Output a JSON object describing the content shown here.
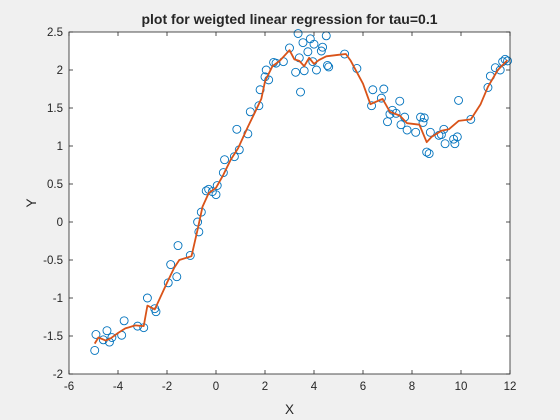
{
  "chart_data": {
    "type": "scatter",
    "title": "plot for weigted linear regression for tau=0.1",
    "xlabel": "X",
    "ylabel": "Y",
    "xlim": [
      -6,
      12
    ],
    "ylim": [
      -2,
      2.5
    ],
    "xticks": [
      "-6",
      "-4",
      "-2",
      "0",
      "2",
      "4",
      "6",
      "8",
      "10",
      "12"
    ],
    "yticks": [
      "-2",
      "-1.5",
      "-1",
      "-0.5",
      "0",
      "0.5",
      "1",
      "1.5",
      "2",
      "2.5"
    ],
    "grid": false,
    "legend": "none",
    "colors": {
      "points": "#0072bd",
      "line": "#d95319",
      "axes": "#262626",
      "background": "#ffffff",
      "figure": "#f0f0f0"
    },
    "series": [
      {
        "kind": "scatter",
        "points": [
          [
            -4.95,
            -1.69
          ],
          [
            -4.9,
            -1.48
          ],
          [
            -4.6,
            -1.55
          ],
          [
            -4.45,
            -1.43
          ],
          [
            -4.35,
            -1.58
          ],
          [
            -4.25,
            -1.52
          ],
          [
            -3.85,
            -1.49
          ],
          [
            -3.75,
            -1.3
          ],
          [
            -3.2,
            -1.37
          ],
          [
            -2.95,
            -1.39
          ],
          [
            -2.8,
            -1.0
          ],
          [
            -2.5,
            -1.14
          ],
          [
            -2.45,
            -1.18
          ],
          [
            -1.95,
            -0.8
          ],
          [
            -1.85,
            -0.56
          ],
          [
            -1.6,
            -0.72
          ],
          [
            -1.55,
            -0.31
          ],
          [
            -1.05,
            -0.44
          ],
          [
            -0.75,
            0.0
          ],
          [
            -0.7,
            -0.13
          ],
          [
            -0.6,
            0.13
          ],
          [
            -0.4,
            0.41
          ],
          [
            -0.3,
            0.43
          ],
          [
            -0.15,
            0.4
          ],
          [
            0.0,
            0.36
          ],
          [
            0.05,
            0.48
          ],
          [
            0.3,
            0.65
          ],
          [
            0.35,
            0.82
          ],
          [
            0.75,
            0.86
          ],
          [
            0.85,
            1.22
          ],
          [
            0.95,
            0.95
          ],
          [
            1.3,
            1.16
          ],
          [
            1.4,
            1.45
          ],
          [
            1.75,
            1.53
          ],
          [
            1.8,
            1.74
          ],
          [
            2.0,
            1.91
          ],
          [
            2.05,
            2.0
          ],
          [
            2.15,
            1.87
          ],
          [
            2.35,
            2.1
          ],
          [
            2.45,
            2.09
          ],
          [
            2.75,
            2.11
          ],
          [
            3.0,
            2.29
          ],
          [
            3.25,
            1.97
          ],
          [
            3.35,
            2.48
          ],
          [
            3.4,
            2.16
          ],
          [
            3.45,
            1.71
          ],
          [
            3.55,
            2.36
          ],
          [
            3.6,
            1.99
          ],
          [
            3.75,
            2.24
          ],
          [
            3.85,
            2.41
          ],
          [
            3.95,
            2.11
          ],
          [
            4.0,
            2.34
          ],
          [
            4.1,
            2.0
          ],
          [
            4.3,
            2.25
          ],
          [
            4.35,
            2.3
          ],
          [
            4.5,
            2.45
          ],
          [
            4.55,
            2.06
          ],
          [
            4.6,
            2.04
          ],
          [
            5.25,
            2.21
          ],
          [
            5.75,
            2.02
          ],
          [
            6.35,
            1.53
          ],
          [
            6.4,
            1.74
          ],
          [
            6.75,
            1.63
          ],
          [
            6.85,
            1.75
          ],
          [
            7.0,
            1.32
          ],
          [
            7.1,
            1.42
          ],
          [
            7.2,
            1.47
          ],
          [
            7.35,
            1.43
          ],
          [
            7.5,
            1.59
          ],
          [
            7.55,
            1.28
          ],
          [
            7.7,
            1.38
          ],
          [
            7.8,
            1.21
          ],
          [
            8.15,
            1.18
          ],
          [
            8.35,
            1.38
          ],
          [
            8.45,
            1.31
          ],
          [
            8.5,
            1.37
          ],
          [
            8.6,
            0.92
          ],
          [
            8.7,
            0.9
          ],
          [
            8.75,
            1.18
          ],
          [
            9.1,
            1.14
          ],
          [
            9.2,
            1.15
          ],
          [
            9.3,
            1.22
          ],
          [
            9.35,
            1.03
          ],
          [
            9.7,
            1.09
          ],
          [
            9.75,
            1.03
          ],
          [
            9.85,
            1.12
          ],
          [
            9.9,
            1.6
          ],
          [
            10.4,
            1.35
          ],
          [
            11.1,
            1.77
          ],
          [
            11.2,
            1.92
          ],
          [
            11.4,
            2.03
          ],
          [
            11.6,
            2.0
          ],
          [
            11.7,
            2.11
          ],
          [
            11.8,
            2.14
          ],
          [
            11.9,
            2.12
          ]
        ]
      },
      {
        "kind": "line",
        "points": [
          [
            -4.95,
            -1.6
          ],
          [
            -4.8,
            -1.52
          ],
          [
            -4.5,
            -1.56
          ],
          [
            -4.3,
            -1.53
          ],
          [
            -4.0,
            -1.46
          ],
          [
            -3.7,
            -1.4
          ],
          [
            -3.3,
            -1.36
          ],
          [
            -2.95,
            -1.37
          ],
          [
            -2.8,
            -1.1
          ],
          [
            -2.5,
            -1.15
          ],
          [
            -2.0,
            -0.8
          ],
          [
            -1.7,
            -0.6
          ],
          [
            -1.5,
            -0.5
          ],
          [
            -1.0,
            -0.45
          ],
          [
            -0.75,
            -0.1
          ],
          [
            -0.55,
            0.2
          ],
          [
            -0.3,
            0.38
          ],
          [
            0.0,
            0.45
          ],
          [
            0.3,
            0.62
          ],
          [
            0.6,
            0.82
          ],
          [
            0.9,
            0.97
          ],
          [
            1.3,
            1.25
          ],
          [
            1.6,
            1.45
          ],
          [
            1.85,
            1.62
          ],
          [
            2.0,
            1.85
          ],
          [
            2.3,
            2.05
          ],
          [
            2.6,
            2.12
          ],
          [
            3.0,
            2.26
          ],
          [
            3.2,
            2.14
          ],
          [
            3.4,
            2.12
          ],
          [
            3.6,
            2.05
          ],
          [
            3.8,
            2.16
          ],
          [
            4.0,
            2.08
          ],
          [
            4.2,
            2.13
          ],
          [
            4.5,
            2.18
          ],
          [
            5.0,
            2.2
          ],
          [
            5.3,
            2.21
          ],
          [
            5.5,
            2.12
          ],
          [
            6.0,
            1.82
          ],
          [
            6.3,
            1.55
          ],
          [
            6.8,
            1.62
          ],
          [
            7.1,
            1.45
          ],
          [
            7.5,
            1.4
          ],
          [
            7.8,
            1.3
          ],
          [
            8.3,
            1.28
          ],
          [
            8.6,
            1.05
          ],
          [
            8.8,
            1.12
          ],
          [
            9.2,
            1.2
          ],
          [
            9.5,
            1.22
          ],
          [
            9.9,
            1.33
          ],
          [
            10.4,
            1.35
          ],
          [
            10.8,
            1.55
          ],
          [
            11.1,
            1.78
          ],
          [
            11.5,
            2.0
          ],
          [
            11.9,
            2.13
          ]
        ]
      }
    ]
  }
}
